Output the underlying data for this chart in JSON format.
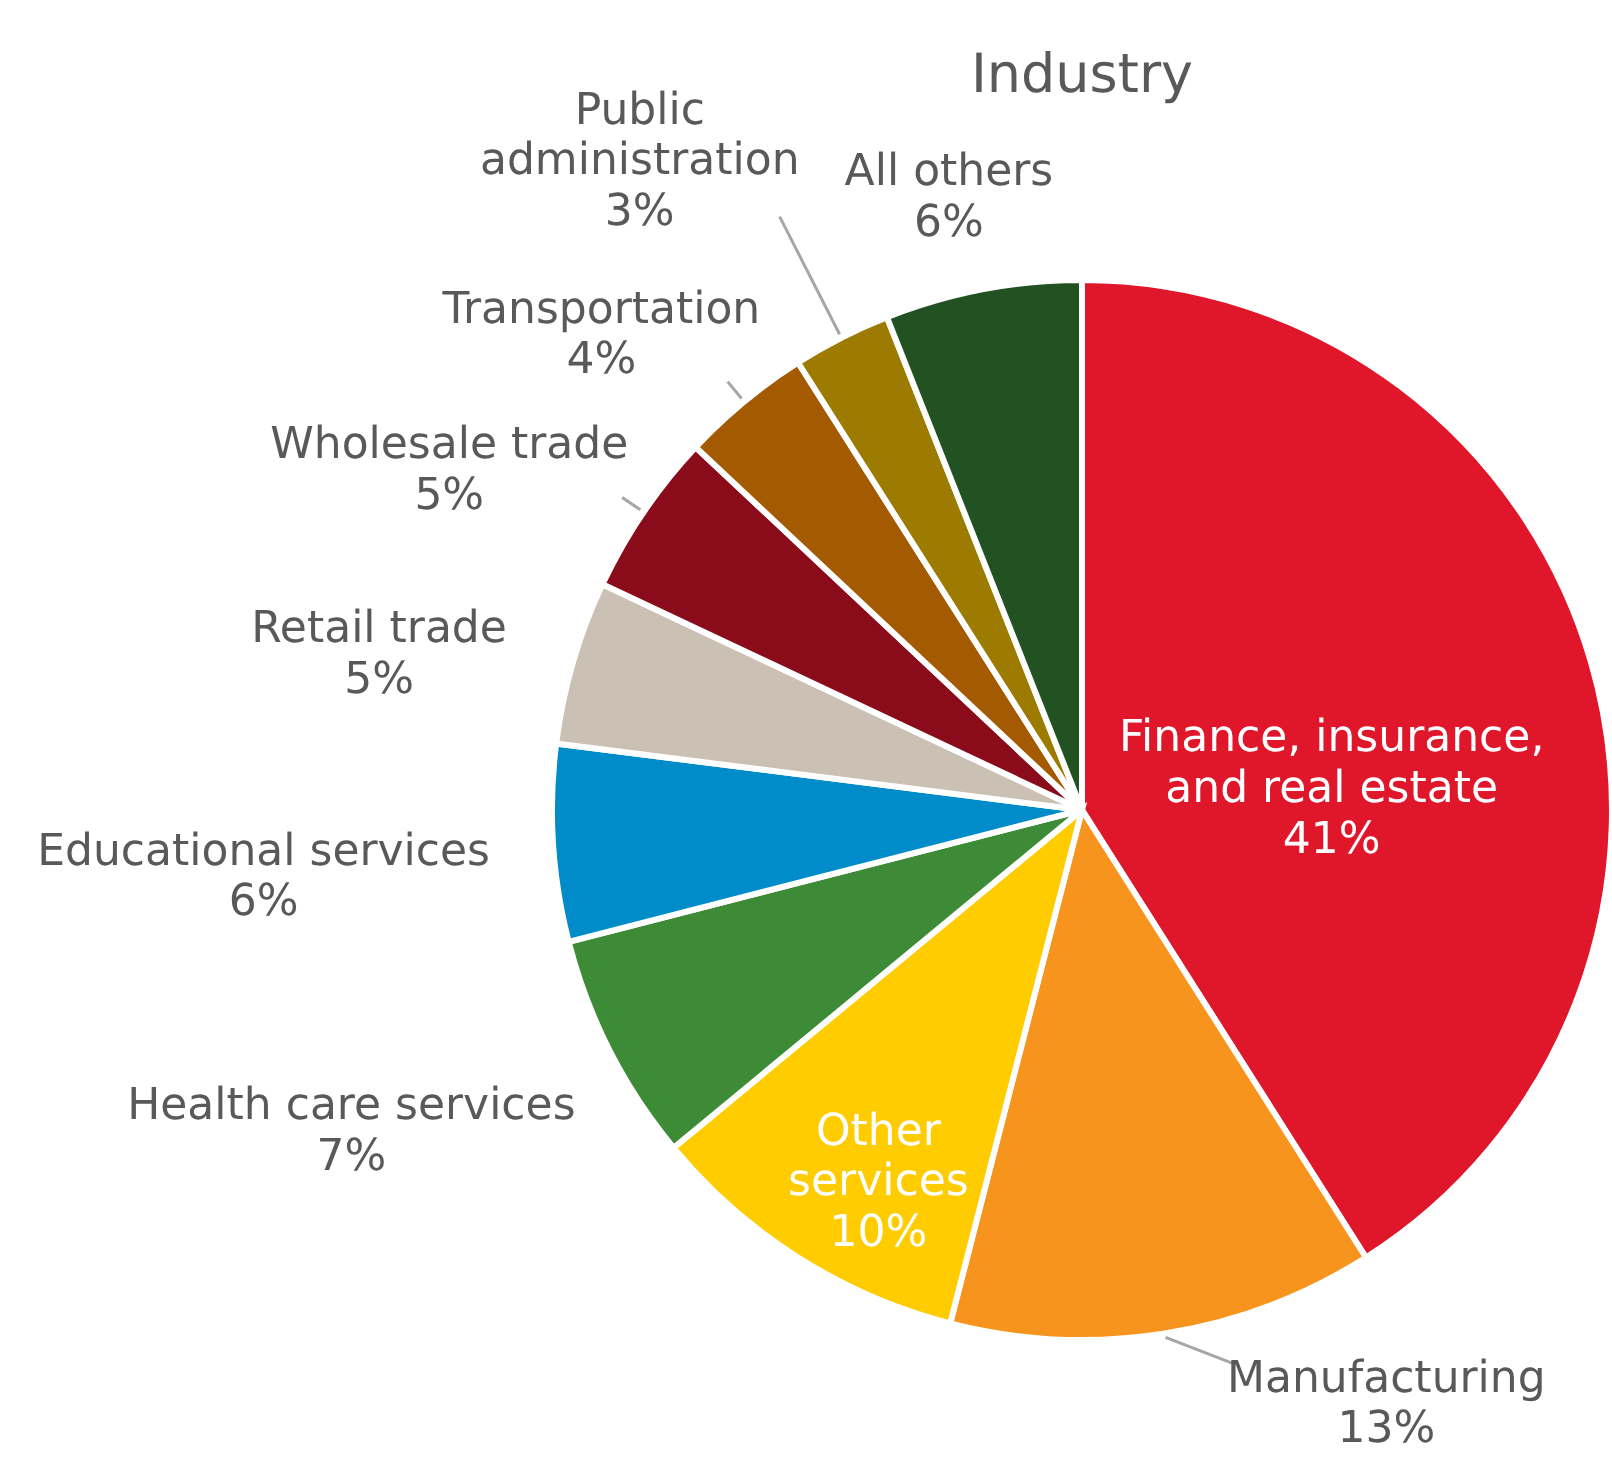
{
  "chart_data": {
    "type": "pie",
    "title": "Industry",
    "categories": [
      "Finance, insurance, and real estate",
      "Manufacturing",
      "Other services",
      "Health care services",
      "Educational services",
      "Retail trade",
      "Wholesale trade",
      "Transportation",
      "Public administration",
      "All others"
    ],
    "values": [
      41,
      13,
      10,
      7,
      6,
      5,
      5,
      4,
      3,
      6
    ],
    "colors": [
      "#e0162b",
      "#f7941d",
      "#ffcc00",
      "#3d8b37",
      "#008bc9",
      "#cbc0b4",
      "#8a0b1a",
      "#a35a00",
      "#9c7b00",
      "#225122"
    ],
    "value_labels": [
      "41%",
      "13%",
      "10%",
      "7%",
      "6%",
      "5%",
      "5%",
      "4%",
      "3%",
      "6%"
    ]
  }
}
